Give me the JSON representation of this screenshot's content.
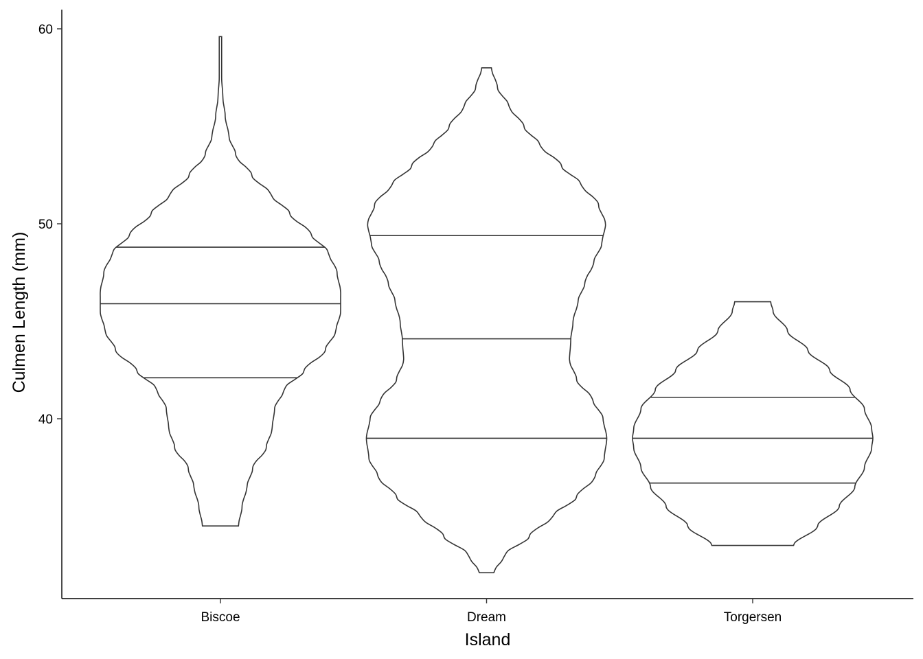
{
  "chart_data": {
    "type": "violin",
    "xlabel": "Island",
    "ylabel": "Culmen Length (mm)",
    "ylim": [
      31,
      61
    ],
    "yticks": [
      40,
      50,
      60
    ],
    "categories": [
      "Biscoe",
      "Dream",
      "Torgersen"
    ],
    "draw_quantiles": [
      0.25,
      0.5,
      0.75
    ],
    "legend": "none",
    "grid": false,
    "violins": [
      {
        "category": "Biscoe",
        "min": 34.5,
        "max": 59.6,
        "quantiles": {
          "q25": 42.1,
          "q50": 45.9,
          "q75": 48.8
        },
        "density_profile": [
          [
            34.5,
            0.15
          ],
          [
            35.5,
            0.18
          ],
          [
            36.5,
            0.22
          ],
          [
            37.5,
            0.27
          ],
          [
            38.5,
            0.38
          ],
          [
            39.5,
            0.43
          ],
          [
            40.5,
            0.45
          ],
          [
            41.5,
            0.53
          ],
          [
            42.5,
            0.7
          ],
          [
            43.5,
            0.87
          ],
          [
            44.5,
            0.96
          ],
          [
            45.5,
            1.0
          ],
          [
            46.5,
            1.0
          ],
          [
            47.5,
            0.97
          ],
          [
            48.5,
            0.9
          ],
          [
            49.5,
            0.75
          ],
          [
            50.5,
            0.58
          ],
          [
            51.5,
            0.42
          ],
          [
            52.5,
            0.26
          ],
          [
            53.5,
            0.13
          ],
          [
            54.5,
            0.07
          ],
          [
            55.5,
            0.04
          ],
          [
            56.5,
            0.02
          ],
          [
            57.5,
            0.01
          ],
          [
            59.6,
            0.01
          ]
        ]
      },
      {
        "category": "Dream",
        "min": 32.1,
        "max": 58.0,
        "quantiles": {
          "q25": 39.0,
          "q50": 44.1,
          "q75": 49.4
        },
        "density_profile": [
          [
            32.1,
            0.06
          ],
          [
            33.0,
            0.15
          ],
          [
            34.0,
            0.36
          ],
          [
            35.0,
            0.55
          ],
          [
            36.0,
            0.75
          ],
          [
            37.0,
            0.9
          ],
          [
            38.0,
            0.98
          ],
          [
            39.0,
            1.0
          ],
          [
            40.0,
            0.97
          ],
          [
            41.0,
            0.88
          ],
          [
            42.0,
            0.75
          ],
          [
            43.0,
            0.69
          ],
          [
            44.0,
            0.7
          ],
          [
            45.0,
            0.72
          ],
          [
            46.0,
            0.76
          ],
          [
            47.0,
            0.82
          ],
          [
            48.0,
            0.89
          ],
          [
            49.0,
            0.96
          ],
          [
            50.0,
            0.99
          ],
          [
            51.0,
            0.93
          ],
          [
            52.0,
            0.79
          ],
          [
            53.0,
            0.62
          ],
          [
            54.0,
            0.45
          ],
          [
            55.0,
            0.31
          ],
          [
            56.0,
            0.19
          ],
          [
            57.0,
            0.09
          ],
          [
            58.0,
            0.04
          ]
        ]
      },
      {
        "category": "Torgersen",
        "min": 33.5,
        "max": 46.0,
        "quantiles": {
          "q25": 36.7,
          "q50": 39.0,
          "q75": 41.1
        },
        "density_profile": [
          [
            33.5,
            0.34
          ],
          [
            34.5,
            0.54
          ],
          [
            35.5,
            0.72
          ],
          [
            36.5,
            0.85
          ],
          [
            37.5,
            0.93
          ],
          [
            38.5,
            0.99
          ],
          [
            39.0,
            1.0
          ],
          [
            39.5,
            0.99
          ],
          [
            40.5,
            0.93
          ],
          [
            41.5,
            0.81
          ],
          [
            42.5,
            0.64
          ],
          [
            43.5,
            0.46
          ],
          [
            44.5,
            0.29
          ],
          [
            45.5,
            0.17
          ],
          [
            46.0,
            0.15
          ]
        ]
      }
    ]
  }
}
